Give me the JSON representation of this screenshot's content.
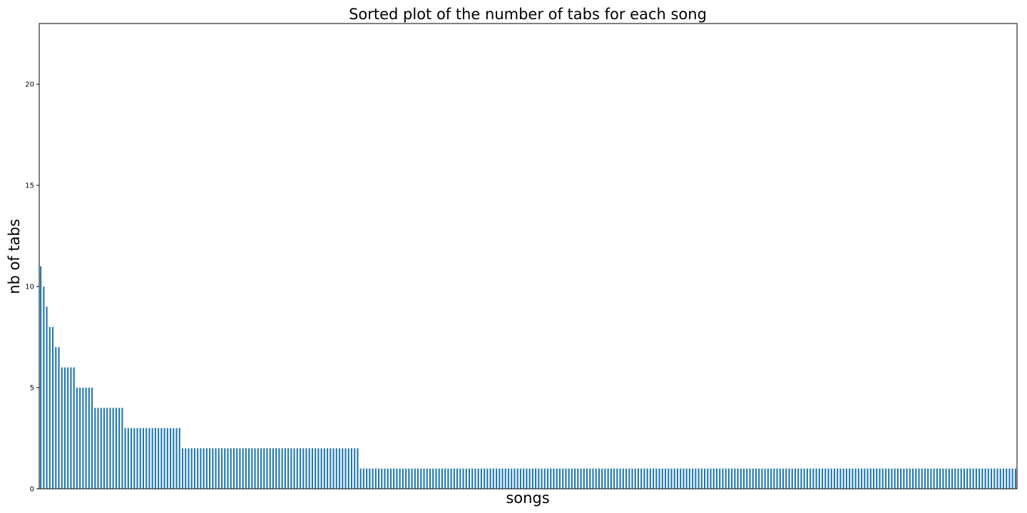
{
  "chart_data": {
    "type": "bar",
    "title": "Sorted plot of the number of tabs for each song",
    "xlabel": "songs",
    "ylabel": "nb of tabs",
    "ylim": [
      0,
      23
    ],
    "yticks": [
      0,
      5,
      10,
      15,
      20
    ],
    "grid": false,
    "bar_color": "#1f77b4",
    "values": [
      11,
      10,
      9,
      8,
      8,
      7,
      7,
      6,
      6,
      6,
      6,
      6,
      5,
      5,
      5,
      5,
      5,
      5,
      4,
      4,
      4,
      4,
      4,
      4,
      4,
      4,
      4,
      4,
      3,
      3,
      3,
      3,
      3,
      3,
      3,
      3,
      3,
      3,
      3,
      3,
      3,
      3,
      3,
      3,
      3,
      3,
      3,
      2,
      2,
      2,
      2,
      2,
      2,
      2,
      2,
      2,
      2,
      2,
      2,
      2,
      2,
      2,
      2,
      2,
      2,
      2,
      2,
      2,
      2,
      2,
      2,
      2,
      2,
      2,
      2,
      2,
      2,
      2,
      2,
      2,
      2,
      2,
      2,
      2,
      2,
      2,
      2,
      2,
      2,
      2,
      2,
      2,
      2,
      2,
      2,
      2,
      2,
      2,
      2,
      2,
      2,
      2,
      2,
      2,
      2,
      2,
      1,
      1,
      1,
      1,
      1,
      1,
      1,
      1,
      1,
      1,
      1,
      1,
      1,
      1,
      1,
      1,
      1,
      1,
      1,
      1,
      1,
      1,
      1,
      1,
      1,
      1,
      1,
      1,
      1,
      1,
      1,
      1,
      1,
      1,
      1,
      1,
      1,
      1,
      1,
      1,
      1,
      1,
      1,
      1,
      1,
      1,
      1,
      1,
      1,
      1,
      1,
      1,
      1,
      1,
      1,
      1,
      1,
      1,
      1,
      1,
      1,
      1,
      1,
      1,
      1,
      1,
      1,
      1,
      1,
      1,
      1,
      1,
      1,
      1,
      1,
      1,
      1,
      1,
      1,
      1,
      1,
      1,
      1,
      1,
      1,
      1,
      1,
      1,
      1,
      1,
      1,
      1,
      1,
      1,
      1,
      1,
      1,
      1,
      1,
      1,
      1,
      1,
      1,
      1,
      1,
      1,
      1,
      1,
      1,
      1,
      1,
      1,
      1,
      1,
      1,
      1,
      1,
      1,
      1,
      1,
      1,
      1,
      1,
      1,
      1,
      1,
      1,
      1,
      1,
      1,
      1,
      1,
      1,
      1,
      1,
      1,
      1,
      1,
      1,
      1,
      1,
      1,
      1,
      1,
      1,
      1,
      1,
      1,
      1,
      1,
      1,
      1,
      1,
      1,
      1,
      1,
      1,
      1,
      1,
      1,
      1,
      1,
      1,
      1,
      1,
      1,
      1,
      1,
      1,
      1,
      1,
      1,
      1,
      1,
      1,
      1,
      1,
      1,
      1,
      1,
      1,
      1,
      1,
      1,
      1,
      1,
      1,
      1,
      1,
      1,
      1,
      1,
      1,
      1,
      1,
      1,
      1,
      1,
      1,
      1,
      1,
      1,
      1,
      1,
      1,
      1,
      1,
      1,
      1,
      1,
      1,
      1,
      1,
      1,
      1,
      1,
      1,
      1
    ]
  }
}
